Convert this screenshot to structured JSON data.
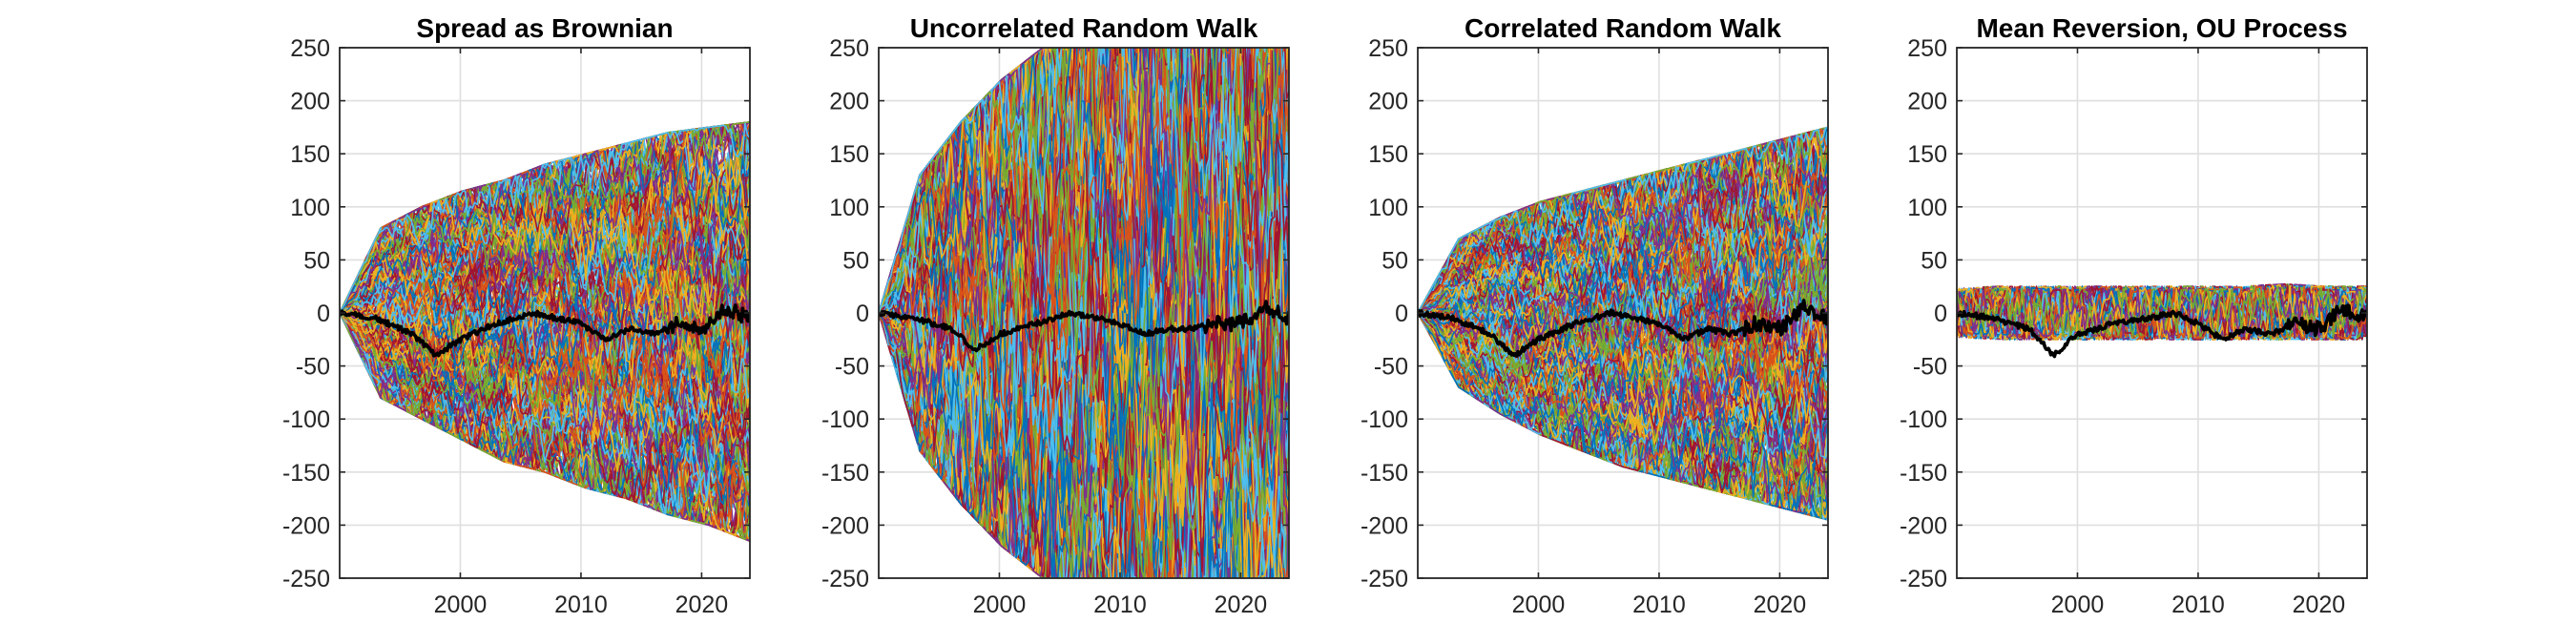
{
  "chart_data": [
    {
      "type": "line",
      "title": "Spread as Brownian",
      "xlabel": "",
      "ylabel": "",
      "xlim": [
        1990,
        2024
      ],
      "ylim": [
        -250,
        250
      ],
      "xticks": [
        2000,
        2010,
        2020
      ],
      "yticks": [
        250,
        200,
        150,
        100,
        50,
        0,
        -50,
        -100,
        -150,
        -200,
        -250
      ],
      "grid": true,
      "process": "brownian",
      "band_upper": [
        0,
        80,
        100,
        115,
        125,
        140,
        150,
        160,
        170,
        175,
        180
      ],
      "band_lower": [
        0,
        -80,
        -100,
        -120,
        -140,
        -150,
        -165,
        -175,
        -190,
        -200,
        -215
      ],
      "series_count": 300,
      "series_colors": [
        "#0072BD",
        "#D95319",
        "#EDB120",
        "#7E2F8E",
        "#77AC30",
        "#4DBEEE",
        "#A2142F"
      ],
      "mean_series": {
        "color": "#000000",
        "x": [
          1990,
          1993,
          1996,
          1998,
          2000,
          2003,
          2006,
          2008,
          2010,
          2012,
          2014,
          2016,
          2018,
          2020,
          2022,
          2024
        ],
        "y": [
          0,
          -5,
          -20,
          -40,
          -25,
          -10,
          0,
          -5,
          -10,
          -25,
          -15,
          -20,
          -10,
          -15,
          5,
          -5
        ]
      }
    },
    {
      "type": "line",
      "title": "Uncorrelated Random Walk",
      "xlabel": "",
      "ylabel": "",
      "xlim": [
        1990,
        2024
      ],
      "ylim": [
        -250,
        250
      ],
      "xticks": [
        2000,
        2010,
        2020
      ],
      "yticks": [
        250,
        200,
        150,
        100,
        50,
        0,
        -50,
        -100,
        -150,
        -200,
        -250
      ],
      "grid": true,
      "process": "random_walk",
      "band_upper": [
        0,
        130,
        180,
        220,
        250,
        270,
        285,
        300,
        310,
        320,
        330
      ],
      "band_lower": [
        0,
        -130,
        -180,
        -220,
        -250,
        -270,
        -285,
        -300,
        -310,
        -320,
        -330
      ],
      "series_count": 300,
      "series_colors": [
        "#0072BD",
        "#D95319",
        "#EDB120",
        "#7E2F8E",
        "#77AC30",
        "#4DBEEE",
        "#A2142F"
      ],
      "mean_series": {
        "color": "#000000",
        "x": [
          1990,
          1993,
          1996,
          1998,
          2000,
          2003,
          2006,
          2008,
          2010,
          2012,
          2014,
          2016,
          2018,
          2020,
          2022,
          2024
        ],
        "y": [
          0,
          -5,
          -15,
          -35,
          -20,
          -10,
          0,
          -5,
          -10,
          -20,
          -15,
          -15,
          -10,
          -10,
          5,
          -5
        ]
      }
    },
    {
      "type": "line",
      "title": "Correlated Random Walk",
      "xlabel": "",
      "ylabel": "",
      "xlim": [
        1990,
        2024
      ],
      "ylim": [
        -250,
        250
      ],
      "xticks": [
        2000,
        2010,
        2020
      ],
      "yticks": [
        250,
        200,
        150,
        100,
        50,
        0,
        -50,
        -100,
        -150,
        -200,
        -250
      ],
      "grid": true,
      "process": "brownian",
      "band_upper": [
        0,
        70,
        90,
        105,
        115,
        125,
        135,
        145,
        155,
        165,
        175
      ],
      "band_lower": [
        0,
        -70,
        -95,
        -115,
        -130,
        -145,
        -155,
        -165,
        -175,
        -185,
        -195
      ],
      "series_count": 300,
      "series_colors": [
        "#0072BD",
        "#D95319",
        "#EDB120",
        "#7E2F8E",
        "#77AC30",
        "#4DBEEE",
        "#A2142F"
      ],
      "mean_series": {
        "color": "#000000",
        "x": [
          1990,
          1993,
          1996,
          1998,
          2000,
          2003,
          2006,
          2008,
          2010,
          2012,
          2014,
          2016,
          2018,
          2020,
          2022,
          2024
        ],
        "y": [
          0,
          -5,
          -20,
          -40,
          -25,
          -10,
          0,
          -5,
          -10,
          -25,
          -15,
          -20,
          -10,
          -15,
          5,
          -5
        ]
      }
    },
    {
      "type": "line",
      "title": "Mean Reversion, OU Process",
      "xlabel": "",
      "ylabel": "",
      "xlim": [
        1990,
        2024
      ],
      "ylim": [
        -250,
        250
      ],
      "xticks": [
        2000,
        2010,
        2020
      ],
      "yticks": [
        250,
        200,
        150,
        100,
        50,
        0,
        -50,
        -100,
        -150,
        -200,
        -250
      ],
      "grid": true,
      "process": "ou",
      "band_upper": [
        20,
        22,
        22,
        22,
        22,
        22,
        22,
        22,
        24,
        22,
        22
      ],
      "band_lower": [
        -20,
        -22,
        -22,
        -22,
        -22,
        -22,
        -22,
        -22,
        -22,
        -22,
        -22
      ],
      "series_count": 250,
      "series_colors": [
        "#0072BD",
        "#D95319",
        "#EDB120",
        "#7E2F8E",
        "#77AC30",
        "#4DBEEE",
        "#A2142F"
      ],
      "mean_series": {
        "color": "#000000",
        "x": [
          1990,
          1993,
          1996,
          1998,
          2000,
          2003,
          2006,
          2008,
          2010,
          2012,
          2014,
          2016,
          2018,
          2020,
          2022,
          2024
        ],
        "y": [
          0,
          -5,
          -15,
          -40,
          -20,
          -10,
          -5,
          0,
          -10,
          -25,
          -15,
          -20,
          -10,
          -15,
          5,
          -5
        ]
      }
    }
  ]
}
